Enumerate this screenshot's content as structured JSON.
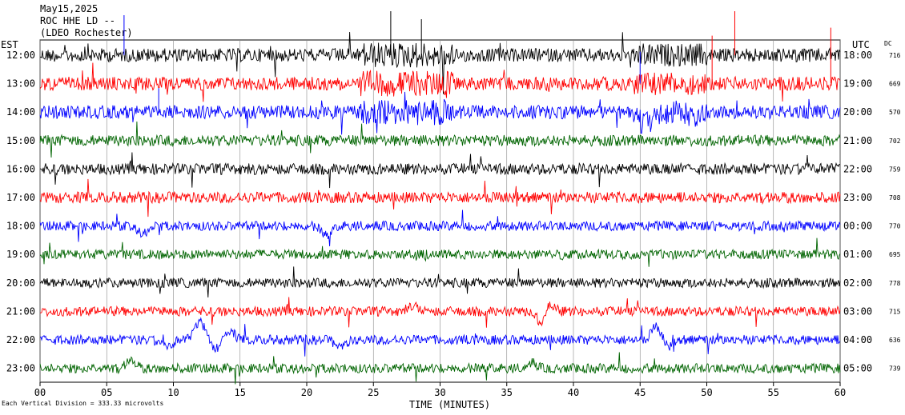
{
  "header": {
    "date": "May15,2025",
    "station": "ROC HHE LD --",
    "network": "(LDEO Rochester)"
  },
  "footer": {
    "scale_note": "Each Vertical Division = 333.33 microvolts"
  },
  "chart_data": {
    "type": "line",
    "title": "",
    "xlabel": "TIME (MINUTES)",
    "left_axis_label": "EST",
    "right_axis_label": "UTC",
    "dc_label": "DC",
    "xlim": [
      0,
      60
    ],
    "xticks": [
      "00",
      "05",
      "10",
      "15",
      "20",
      "25",
      "30",
      "35",
      "40",
      "45",
      "50",
      "55",
      "60"
    ],
    "grid": "vertical",
    "colors": [
      "#000000",
      "#ff0000",
      "#0000ff",
      "#006400"
    ],
    "series": [
      {
        "est": "12:00",
        "utc": "18:00",
        "dc": "716",
        "color": "#000000"
      },
      {
        "est": "13:00",
        "utc": "19:00",
        "dc": "669",
        "color": "#ff0000"
      },
      {
        "est": "14:00",
        "utc": "20:00",
        "dc": "570",
        "color": "#0000ff"
      },
      {
        "est": "15:00",
        "utc": "21:00",
        "dc": "702",
        "color": "#006400"
      },
      {
        "est": "16:00",
        "utc": "22:00",
        "dc": "759",
        "color": "#000000"
      },
      {
        "est": "17:00",
        "utc": "23:00",
        "dc": "708",
        "color": "#ff0000"
      },
      {
        "est": "18:00",
        "utc": "00:00",
        "dc": "770",
        "color": "#0000ff"
      },
      {
        "est": "19:00",
        "utc": "01:00",
        "dc": "695",
        "color": "#006400"
      },
      {
        "est": "20:00",
        "utc": "02:00",
        "dc": "778",
        "color": "#000000"
      },
      {
        "est": "21:00",
        "utc": "03:00",
        "dc": "715",
        "color": "#ff0000"
      },
      {
        "est": "22:00",
        "utc": "04:00",
        "dc": "636",
        "color": "#0000ff"
      },
      {
        "est": "23:00",
        "utc": "05:00",
        "dc": "739",
        "color": "#006400"
      }
    ]
  }
}
